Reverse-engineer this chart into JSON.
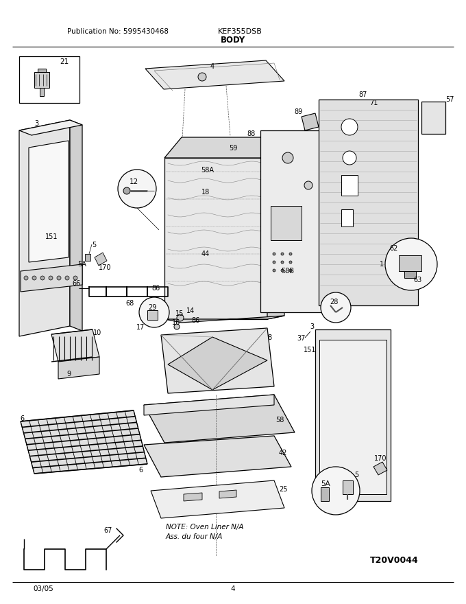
{
  "title": "KEF355DSB",
  "subtitle": "BODY",
  "pub_no": "Publication No: 5995430468",
  "date": "03/05",
  "page": "4",
  "watermark": "T20V0044",
  "note_line1": "NOTE: Oven Liner N/A",
  "note_line2": "Ass. du four N/A",
  "bg_color": "#ffffff",
  "lc": "#000000",
  "fig_width": 6.8,
  "fig_height": 8.8,
  "dpi": 100
}
